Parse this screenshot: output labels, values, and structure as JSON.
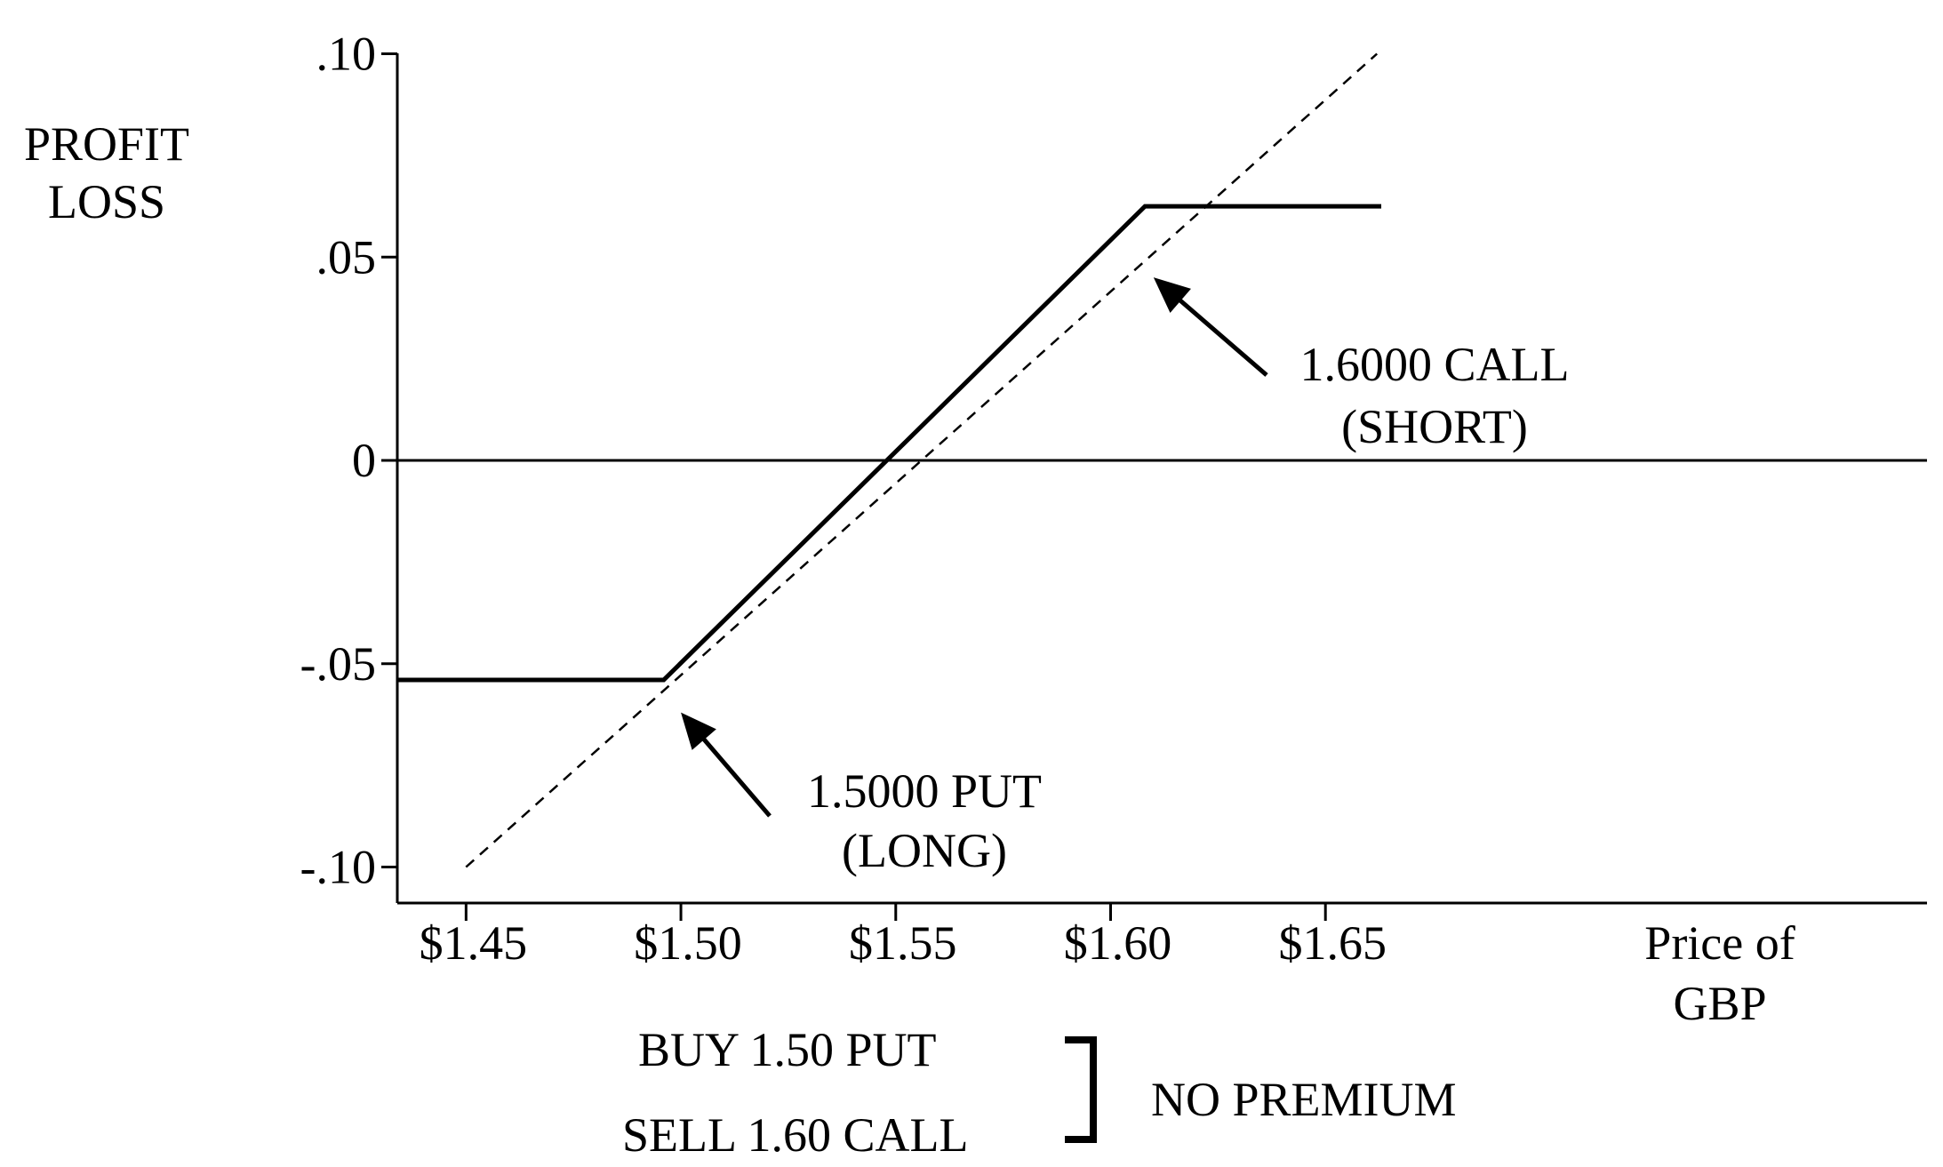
{
  "chart_data": {
    "type": "line",
    "ylabel": [
      "PROFIT",
      "LOSS"
    ],
    "xlabel": [
      "Price of",
      "GBP"
    ],
    "xlim": [
      1.434,
      1.79
    ],
    "ylim": [
      -0.108,
      0.1
    ],
    "x_ticks": [
      {
        "value": 1.45,
        "label": "$1.45"
      },
      {
        "value": 1.5,
        "label": "$1.50"
      },
      {
        "value": 1.55,
        "label": "$1.55"
      },
      {
        "value": 1.6,
        "label": "$1.60"
      },
      {
        "value": 1.65,
        "label": "$1.65"
      }
    ],
    "y_ticks": [
      {
        "value": 0.1,
        "label": ".10"
      },
      {
        "value": 0.05,
        "label": ".05"
      },
      {
        "value": 0,
        "label": "0"
      },
      {
        "value": -0.05,
        "label": "-.05"
      },
      {
        "value": -0.1,
        "label": "-.10"
      }
    ],
    "series": [
      {
        "style": "solid-thick",
        "x": [
          1.434,
          1.496,
          1.608,
          1.663
        ],
        "y": [
          -0.054,
          -0.054,
          0.0625,
          0.0625
        ]
      },
      {
        "style": "dashed",
        "x": [
          1.45,
          1.662
        ],
        "y": [
          -0.1,
          0.1
        ]
      }
    ],
    "zero_line": true,
    "annotations": [
      {
        "lines": [
          "1.6000 CALL",
          "(SHORT)"
        ],
        "arrow_to": {
          "x": 1.61,
          "y": 0.045
        }
      },
      {
        "lines": [
          "1.5000 PUT",
          "(LONG)"
        ],
        "arrow_to": {
          "x": 1.5,
          "y": -0.062
        }
      }
    ],
    "footnote": {
      "lines": [
        "BUY 1.50 PUT",
        "SELL 1.60 CALL"
      ],
      "bracket_label": "NO PREMIUM"
    }
  }
}
